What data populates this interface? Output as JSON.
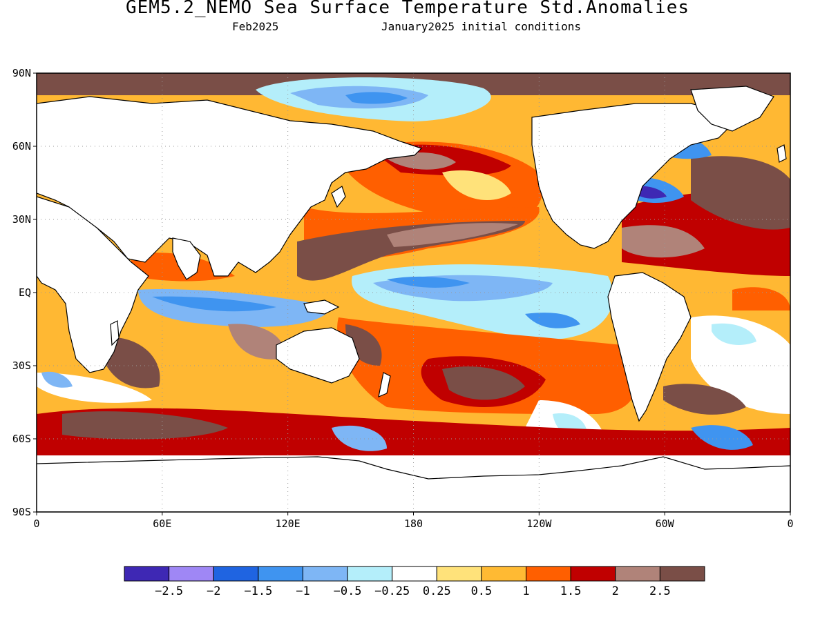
{
  "title": "GEM5.2_NEMO Sea Surface Temperature Std.Anomalies",
  "subtitle_left": "Feb2025",
  "subtitle_right": "January2025 initial conditions",
  "lat_labels": [
    {
      "lat": 90,
      "text": "90N"
    },
    {
      "lat": 60,
      "text": "60N"
    },
    {
      "lat": 30,
      "text": "30N"
    },
    {
      "lat": 0,
      "text": "EQ"
    },
    {
      "lat": -30,
      "text": "30S"
    },
    {
      "lat": -60,
      "text": "60S"
    },
    {
      "lat": -90,
      "text": "90S"
    }
  ],
  "lon_labels": [
    {
      "lon": 0,
      "text": "0"
    },
    {
      "lon": 60,
      "text": "60E"
    },
    {
      "lon": 120,
      "text": "120E"
    },
    {
      "lon": 180,
      "text": "180"
    },
    {
      "lon": 240,
      "text": "120W"
    },
    {
      "lon": 300,
      "text": "60W"
    },
    {
      "lon": 360,
      "text": "0"
    }
  ],
  "colorbar": {
    "colors": [
      "#3e28b4",
      "#9f87f5",
      "#1f64e1",
      "#3f94f0",
      "#7eb6f5",
      "#b4eefa",
      "#ffffff",
      "#ffe27a",
      "#ffba33",
      "#ff5f00",
      "#c00000",
      "#b08379",
      "#7a4e47"
    ],
    "labels": [
      "-2.5",
      "-2",
      "-1.5",
      "-1",
      "-0.5",
      "-0.25",
      "0.25",
      "0.5",
      "1",
      "1.5",
      "2",
      "2.5"
    ]
  },
  "colors": {
    "land": "#ffffff",
    "coast": "#000000",
    "grid": "#9a9a9a"
  }
}
